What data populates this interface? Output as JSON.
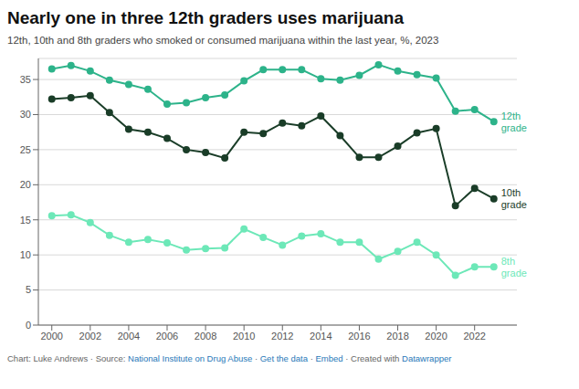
{
  "chart_data": {
    "type": "line",
    "title": "Nearly one in three 12th graders uses marijuana",
    "subtitle": "12th, 10th and 8th graders who smoked or consumed marijuana within the last year, %, 2023",
    "x": [
      2000,
      2001,
      2002,
      2003,
      2004,
      2005,
      2006,
      2007,
      2008,
      2009,
      2010,
      2011,
      2012,
      2013,
      2014,
      2015,
      2016,
      2017,
      2018,
      2019,
      2020,
      2021,
      2022,
      2023
    ],
    "series": [
      {
        "name": "12th grade",
        "color": "#2db38a",
        "marker": "o",
        "values": [
          36.5,
          37.0,
          36.2,
          34.9,
          34.3,
          33.6,
          31.5,
          31.7,
          32.4,
          32.8,
          34.8,
          36.4,
          36.4,
          36.4,
          35.1,
          34.9,
          35.6,
          37.1,
          36.2,
          35.7,
          35.2,
          30.5,
          30.7,
          29.0
        ]
      },
      {
        "name": "10th grade",
        "color": "#1a3d28",
        "marker": "o",
        "values": [
          32.2,
          32.4,
          32.7,
          30.3,
          27.9,
          27.5,
          26.6,
          25.0,
          24.6,
          23.8,
          27.5,
          27.3,
          28.8,
          28.4,
          29.8,
          27.0,
          23.9,
          23.9,
          25.5,
          27.4,
          28.0,
          17.0,
          19.5,
          18.0
        ]
      },
      {
        "name": "8th grade",
        "color": "#6de8b8",
        "marker": "o",
        "values": [
          15.6,
          15.7,
          14.6,
          12.8,
          11.8,
          12.2,
          11.7,
          10.7,
          10.9,
          11.0,
          13.7,
          12.5,
          11.4,
          12.7,
          13.0,
          11.8,
          11.8,
          9.4,
          10.5,
          11.8,
          10.0,
          7.1,
          8.3,
          8.3
        ]
      }
    ],
    "xlim": [
      1999.3,
      2024.2
    ],
    "xticks": [
      2000,
      2002,
      2004,
      2006,
      2008,
      2010,
      2012,
      2014,
      2016,
      2018,
      2020,
      2022
    ],
    "ylim": [
      0,
      38
    ],
    "yticks": [
      0,
      5,
      10,
      15,
      20,
      25,
      30,
      35
    ],
    "grid": true,
    "annotations": [
      {
        "text": "Chart: Luke Andrews · Source: ",
        "color": "#666666"
      },
      {
        "text": "National Institute on Drug Abuse",
        "color": "#2878b8"
      },
      {
        "text": " · ",
        "color": "#666666"
      },
      {
        "text": "Get the data",
        "color": "#2878b8"
      },
      {
        "text": " · ",
        "color": "#666666"
      },
      {
        "text": "Embed",
        "color": "#2878b8"
      },
      {
        "text": " · Created with ",
        "color": "#666666"
      },
      {
        "text": "Datawrapper",
        "color": "#2878b8"
      }
    ]
  }
}
